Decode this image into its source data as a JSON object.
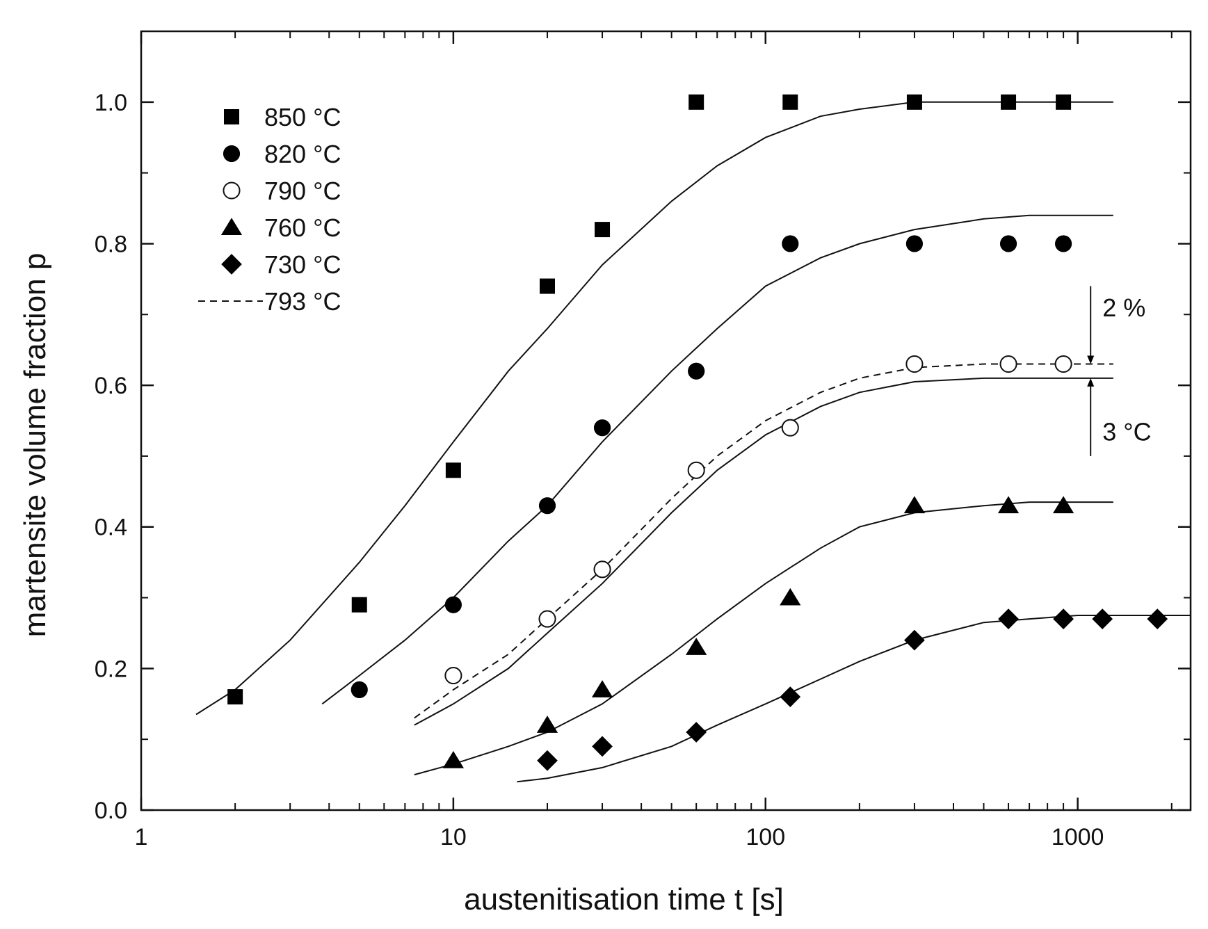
{
  "chart_data": {
    "type": "scatter",
    "xscale": "log",
    "xlabel": "austenitisation time  t [s]",
    "ylabel": "martensite volume fraction  p",
    "xlim": [
      1,
      2300
    ],
    "ylim": [
      0,
      1.1
    ],
    "x_ticks": [
      1,
      10,
      100,
      1000
    ],
    "x_tick_labels": [
      "1",
      "10",
      "100",
      "1000"
    ],
    "y_ticks": [
      0,
      0.2,
      0.4,
      0.6,
      0.8,
      1.0
    ],
    "y_tick_labels": [
      "0.0",
      "0.2",
      "0.4",
      "0.6",
      "0.8",
      "1.0"
    ],
    "legend_position": "top-left",
    "series": [
      {
        "name": "850 °C",
        "marker": "square-filled",
        "x": [
          2,
          5,
          10,
          20,
          30,
          60,
          120,
          300,
          600,
          900
        ],
        "y": [
          0.16,
          0.29,
          0.48,
          0.74,
          0.82,
          1.0,
          1.0,
          1.0,
          1.0,
          1.0
        ]
      },
      {
        "name": "820 °C",
        "marker": "circle-filled",
        "x": [
          5,
          10,
          20,
          30,
          60,
          120,
          300,
          600,
          900
        ],
        "y": [
          0.17,
          0.29,
          0.43,
          0.54,
          0.62,
          0.8,
          0.8,
          0.8,
          0.8
        ]
      },
      {
        "name": "790 °C",
        "marker": "circle-open",
        "x": [
          10,
          20,
          30,
          60,
          120,
          300,
          600,
          900
        ],
        "y": [
          0.19,
          0.27,
          0.34,
          0.48,
          0.54,
          0.63,
          0.63,
          0.63
        ]
      },
      {
        "name": "760 °C",
        "marker": "triangle-filled",
        "x": [
          10,
          20,
          30,
          60,
          120,
          300,
          600,
          900
        ],
        "y": [
          0.07,
          0.12,
          0.17,
          0.23,
          0.3,
          0.43,
          0.43,
          0.43
        ]
      },
      {
        "name": "730 °C",
        "marker": "diamond-filled",
        "x": [
          20,
          30,
          60,
          120,
          300,
          600,
          900,
          1200,
          1800
        ],
        "y": [
          0.07,
          0.09,
          0.11,
          0.16,
          0.24,
          0.27,
          0.27,
          0.27,
          0.27
        ]
      }
    ],
    "fit_curves": [
      {
        "name": "850 °C fit",
        "style": "solid",
        "x": [
          1.5,
          2,
          3,
          5,
          7,
          10,
          15,
          20,
          30,
          50,
          70,
          100,
          150,
          200,
          300,
          500,
          700,
          1000,
          1300
        ],
        "y": [
          0.135,
          0.17,
          0.24,
          0.35,
          0.43,
          0.52,
          0.62,
          0.68,
          0.77,
          0.86,
          0.91,
          0.95,
          0.98,
          0.99,
          1.0,
          1.0,
          1.0,
          1.0,
          1.0
        ]
      },
      {
        "name": "820 °C fit",
        "style": "solid",
        "x": [
          3.8,
          5,
          7,
          10,
          15,
          20,
          30,
          50,
          70,
          100,
          150,
          200,
          300,
          500,
          700,
          1000,
          1300
        ],
        "y": [
          0.15,
          0.19,
          0.24,
          0.3,
          0.38,
          0.43,
          0.52,
          0.62,
          0.68,
          0.74,
          0.78,
          0.8,
          0.82,
          0.835,
          0.84,
          0.84,
          0.84
        ]
      },
      {
        "name": "793 °C",
        "style": "dashed",
        "x": [
          7.5,
          10,
          15,
          20,
          30,
          50,
          70,
          100,
          150,
          200,
          300,
          500,
          700,
          1000,
          1300
        ],
        "y": [
          0.13,
          0.17,
          0.22,
          0.27,
          0.34,
          0.44,
          0.5,
          0.55,
          0.59,
          0.61,
          0.625,
          0.63,
          0.63,
          0.63,
          0.63
        ]
      },
      {
        "name": "790 °C fit",
        "style": "solid",
        "x": [
          7.5,
          10,
          15,
          20,
          30,
          50,
          70,
          100,
          150,
          200,
          300,
          500,
          700,
          1000,
          1300
        ],
        "y": [
          0.12,
          0.15,
          0.2,
          0.25,
          0.32,
          0.42,
          0.48,
          0.53,
          0.57,
          0.59,
          0.605,
          0.61,
          0.61,
          0.61,
          0.61
        ]
      },
      {
        "name": "760 °C fit",
        "style": "solid",
        "x": [
          7.5,
          10,
          15,
          20,
          30,
          50,
          70,
          100,
          150,
          200,
          300,
          500,
          700,
          1000,
          1300
        ],
        "y": [
          0.05,
          0.065,
          0.09,
          0.11,
          0.15,
          0.22,
          0.27,
          0.32,
          0.37,
          0.4,
          0.42,
          0.43,
          0.435,
          0.435,
          0.435
        ]
      },
      {
        "name": "730 °C fit",
        "style": "solid",
        "x": [
          16,
          20,
          30,
          50,
          70,
          100,
          150,
          200,
          300,
          500,
          700,
          1000,
          1500,
          2300
        ],
        "y": [
          0.04,
          0.045,
          0.06,
          0.09,
          0.12,
          0.15,
          0.185,
          0.21,
          0.24,
          0.265,
          0.27,
          0.275,
          0.275,
          0.275
        ]
      }
    ],
    "legend_entries": [
      "850 °C",
      "820 °C",
      "790 °C",
      "760 °C",
      "730 °C",
      "793 °C"
    ],
    "annotations": [
      {
        "text": "2 %",
        "x": 1100,
        "y": 0.71,
        "arrow_from": 0.74,
        "arrow_to": 0.63
      },
      {
        "text": "3 °C",
        "x": 1100,
        "y": 0.535,
        "arrow_from": 0.5,
        "arrow_to": 0.61
      }
    ]
  }
}
